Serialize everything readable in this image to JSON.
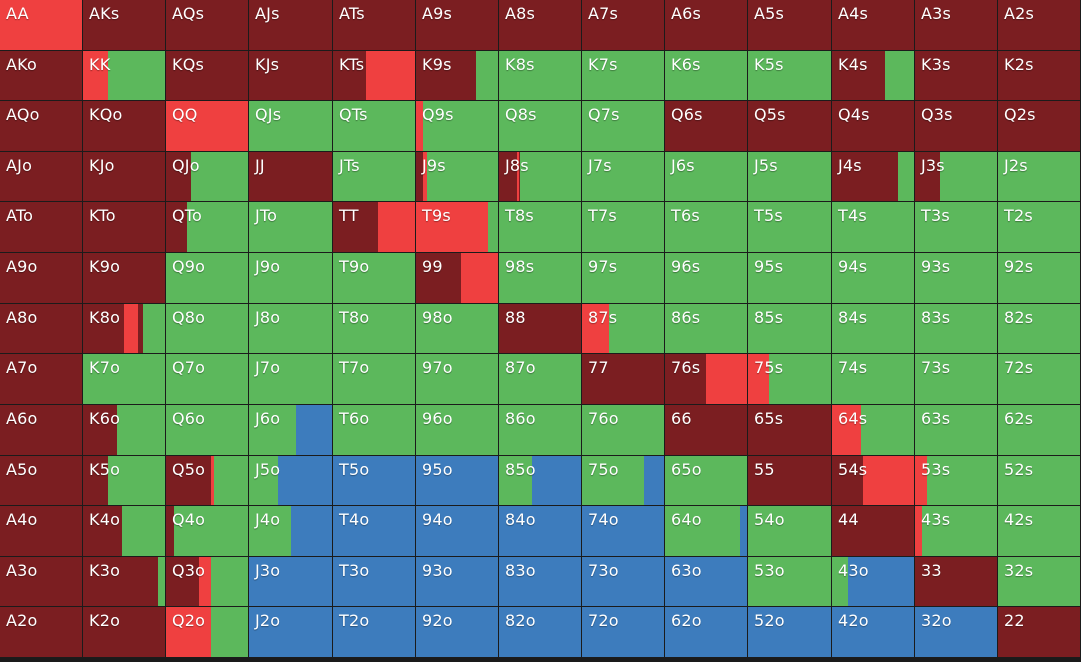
{
  "colors": {
    "fold": "#7b1e21",
    "raise": "#ef4040",
    "call": "#5cb85c",
    "allin": "#3d7cbd"
  },
  "order": [
    "raise",
    "fold",
    "call",
    "allin"
  ],
  "rows": [
    [
      {
        "hand": "AA",
        "mix": {
          "raise": 1.0
        }
      },
      {
        "hand": "AKs",
        "mix": {
          "fold": 1.0
        }
      },
      {
        "hand": "AQs",
        "mix": {
          "fold": 1.0
        }
      },
      {
        "hand": "AJs",
        "mix": {
          "fold": 1.0
        }
      },
      {
        "hand": "ATs",
        "mix": {
          "fold": 1.0
        }
      },
      {
        "hand": "A9s",
        "mix": {
          "fold": 1.0
        }
      },
      {
        "hand": "A8s",
        "mix": {
          "fold": 1.0
        }
      },
      {
        "hand": "A7s",
        "mix": {
          "fold": 1.0
        }
      },
      {
        "hand": "A6s",
        "mix": {
          "fold": 1.0
        }
      },
      {
        "hand": "A5s",
        "mix": {
          "fold": 1.0
        }
      },
      {
        "hand": "A4s",
        "mix": {
          "fold": 1.0
        }
      },
      {
        "hand": "A3s",
        "mix": {
          "fold": 1.0
        }
      },
      {
        "hand": "A2s",
        "mix": {
          "fold": 1.0
        }
      }
    ],
    [
      {
        "hand": "AKo",
        "mix": {
          "fold": 1.0
        }
      },
      {
        "hand": "KK",
        "mix": {
          "raise": 0.31,
          "call": 0.69
        }
      },
      {
        "hand": "KQs",
        "mix": {
          "fold": 1.0
        }
      },
      {
        "hand": "KJs",
        "mix": {
          "fold": 1.0
        }
      },
      {
        "hand": "KTs",
        "mix": {
          "fold": 0.4,
          "raise": 0.6
        }
      },
      {
        "hand": "K9s",
        "mix": {
          "fold": 0.73,
          "call": 0.27
        }
      },
      {
        "hand": "K8s",
        "mix": {
          "call": 1.0
        }
      },
      {
        "hand": "K7s",
        "mix": {
          "call": 1.0
        }
      },
      {
        "hand": "K6s",
        "mix": {
          "call": 1.0
        }
      },
      {
        "hand": "K5s",
        "mix": {
          "call": 1.0
        }
      },
      {
        "hand": "K4s",
        "mix": {
          "fold": 0.65,
          "call": 0.35
        }
      },
      {
        "hand": "K3s",
        "mix": {
          "fold": 1.0
        }
      },
      {
        "hand": "K2s",
        "mix": {
          "fold": 1.0
        }
      }
    ],
    [
      {
        "hand": "AQo",
        "mix": {
          "fold": 1.0
        }
      },
      {
        "hand": "KQo",
        "mix": {
          "fold": 1.0
        }
      },
      {
        "hand": "QQ",
        "mix": {
          "raise": 1.0
        }
      },
      {
        "hand": "QJs",
        "mix": {
          "call": 1.0
        }
      },
      {
        "hand": "QTs",
        "mix": {
          "call": 1.0
        }
      },
      {
        "hand": "Q9s",
        "mix": {
          "raise": 0.08,
          "call": 0.92
        }
      },
      {
        "hand": "Q8s",
        "mix": {
          "call": 1.0
        }
      },
      {
        "hand": "Q7s",
        "mix": {
          "call": 1.0
        }
      },
      {
        "hand": "Q6s",
        "mix": {
          "fold": 1.0
        }
      },
      {
        "hand": "Q5s",
        "mix": {
          "fold": 1.0
        }
      },
      {
        "hand": "Q4s",
        "mix": {
          "fold": 1.0
        }
      },
      {
        "hand": "Q3s",
        "mix": {
          "fold": 1.0
        }
      },
      {
        "hand": "Q2s",
        "mix": {
          "fold": 1.0
        }
      }
    ],
    [
      {
        "hand": "AJo",
        "mix": {
          "fold": 1.0
        }
      },
      {
        "hand": "KJo",
        "mix": {
          "fold": 1.0
        }
      },
      {
        "hand": "QJo",
        "mix": {
          "fold": 0.3,
          "call": 0.7
        }
      },
      {
        "hand": "JJ",
        "mix": {
          "fold": 1.0
        }
      },
      {
        "hand": "JTs",
        "mix": {
          "call": 1.0
        }
      },
      {
        "hand": "J9s",
        "mix": {
          "fold": 0.08,
          "raise": 0.06,
          "call": 0.86
        }
      },
      {
        "hand": "J8s",
        "mix": {
          "fold": 0.22,
          "raise": 0.03,
          "call": 0.75
        }
      },
      {
        "hand": "J7s",
        "mix": {
          "call": 1.0
        }
      },
      {
        "hand": "J6s",
        "mix": {
          "call": 1.0
        }
      },
      {
        "hand": "J5s",
        "mix": {
          "call": 1.0
        }
      },
      {
        "hand": "J4s",
        "mix": {
          "fold": 0.8,
          "call": 0.2
        }
      },
      {
        "hand": "J3s",
        "mix": {
          "fold": 0.3,
          "call": 0.7
        }
      },
      {
        "hand": "J2s",
        "mix": {
          "call": 1.0
        }
      }
    ],
    [
      {
        "hand": "ATo",
        "mix": {
          "fold": 1.0
        }
      },
      {
        "hand": "KTo",
        "mix": {
          "fold": 1.0
        }
      },
      {
        "hand": "QTo",
        "mix": {
          "fold": 0.25,
          "call": 0.75
        }
      },
      {
        "hand": "JTo",
        "mix": {
          "call": 1.0
        }
      },
      {
        "hand": "TT",
        "mix": {
          "fold": 0.55,
          "raise": 0.45
        }
      },
      {
        "hand": "T9s",
        "mix": {
          "raise": 0.88,
          "call": 0.12
        }
      },
      {
        "hand": "T8s",
        "mix": {
          "call": 1.0
        }
      },
      {
        "hand": "T7s",
        "mix": {
          "call": 1.0
        }
      },
      {
        "hand": "T6s",
        "mix": {
          "call": 1.0
        }
      },
      {
        "hand": "T5s",
        "mix": {
          "call": 1.0
        }
      },
      {
        "hand": "T4s",
        "mix": {
          "call": 1.0
        }
      },
      {
        "hand": "T3s",
        "mix": {
          "call": 1.0
        }
      },
      {
        "hand": "T2s",
        "mix": {
          "call": 1.0
        }
      }
    ],
    [
      {
        "hand": "A9o",
        "mix": {
          "fold": 1.0
        }
      },
      {
        "hand": "K9o",
        "mix": {
          "fold": 1.0
        }
      },
      {
        "hand": "Q9o",
        "mix": {
          "call": 1.0
        }
      },
      {
        "hand": "J9o",
        "mix": {
          "call": 1.0
        }
      },
      {
        "hand": "T9o",
        "mix": {
          "call": 1.0
        }
      },
      {
        "hand": "99",
        "mix": {
          "fold": 0.55,
          "raise": 0.45
        }
      },
      {
        "hand": "98s",
        "mix": {
          "call": 1.0
        }
      },
      {
        "hand": "97s",
        "mix": {
          "call": 1.0
        }
      },
      {
        "hand": "96s",
        "mix": {
          "call": 1.0
        }
      },
      {
        "hand": "95s",
        "mix": {
          "call": 1.0
        }
      },
      {
        "hand": "94s",
        "mix": {
          "call": 1.0
        }
      },
      {
        "hand": "93s",
        "mix": {
          "call": 1.0
        }
      },
      {
        "hand": "92s",
        "mix": {
          "call": 1.0
        }
      }
    ],
    [
      {
        "hand": "A8o",
        "mix": {
          "fold": 1.0
        }
      },
      {
        "hand": "K8o",
        "mix": {
          "fold": 0.5,
          "raise": 0.17,
          "fold2": 0.06,
          "call": 0.27
        }
      },
      {
        "hand": "Q8o",
        "mix": {
          "call": 1.0
        }
      },
      {
        "hand": "J8o",
        "mix": {
          "call": 1.0
        }
      },
      {
        "hand": "T8o",
        "mix": {
          "call": 1.0
        }
      },
      {
        "hand": "98o",
        "mix": {
          "call": 1.0
        }
      },
      {
        "hand": "88",
        "mix": {
          "fold": 1.0
        }
      },
      {
        "hand": "87s",
        "mix": {
          "raise": 0.33,
          "call": 0.67
        }
      },
      {
        "hand": "86s",
        "mix": {
          "call": 1.0
        }
      },
      {
        "hand": "85s",
        "mix": {
          "call": 1.0
        }
      },
      {
        "hand": "84s",
        "mix": {
          "call": 1.0
        }
      },
      {
        "hand": "83s",
        "mix": {
          "call": 1.0
        }
      },
      {
        "hand": "82s",
        "mix": {
          "call": 1.0
        }
      }
    ],
    [
      {
        "hand": "A7o",
        "mix": {
          "fold": 1.0
        }
      },
      {
        "hand": "K7o",
        "mix": {
          "call": 1.0
        }
      },
      {
        "hand": "Q7o",
        "mix": {
          "call": 1.0
        }
      },
      {
        "hand": "J7o",
        "mix": {
          "call": 1.0
        }
      },
      {
        "hand": "T7o",
        "mix": {
          "call": 1.0
        }
      },
      {
        "hand": "97o",
        "mix": {
          "call": 1.0
        }
      },
      {
        "hand": "87o",
        "mix": {
          "call": 1.0
        }
      },
      {
        "hand": "77",
        "mix": {
          "fold": 1.0
        }
      },
      {
        "hand": "76s",
        "mix": {
          "fold": 0.5,
          "raise": 0.5
        }
      },
      {
        "hand": "75s",
        "mix": {
          "raise": 0.25,
          "call": 0.75
        }
      },
      {
        "hand": "74s",
        "mix": {
          "call": 1.0
        }
      },
      {
        "hand": "73s",
        "mix": {
          "call": 1.0
        }
      },
      {
        "hand": "72s",
        "mix": {
          "call": 1.0
        }
      }
    ],
    [
      {
        "hand": "A6o",
        "mix": {
          "fold": 1.0
        }
      },
      {
        "hand": "K6o",
        "mix": {
          "fold": 0.42,
          "call": 0.58
        }
      },
      {
        "hand": "Q6o",
        "mix": {
          "call": 1.0
        }
      },
      {
        "hand": "J6o",
        "mix": {
          "call": 0.57,
          "allin": 0.43
        }
      },
      {
        "hand": "T6o",
        "mix": {
          "call": 1.0
        }
      },
      {
        "hand": "96o",
        "mix": {
          "call": 1.0
        }
      },
      {
        "hand": "86o",
        "mix": {
          "call": 1.0
        }
      },
      {
        "hand": "76o",
        "mix": {
          "call": 1.0
        }
      },
      {
        "hand": "66",
        "mix": {
          "fold": 1.0
        }
      },
      {
        "hand": "65s",
        "mix": {
          "fold": 1.0
        }
      },
      {
        "hand": "64s",
        "mix": {
          "raise": 0.35,
          "call": 0.65
        }
      },
      {
        "hand": "63s",
        "mix": {
          "call": 1.0
        }
      },
      {
        "hand": "62s",
        "mix": {
          "call": 1.0
        }
      }
    ],
    [
      {
        "hand": "A5o",
        "mix": {
          "fold": 1.0
        }
      },
      {
        "hand": "K5o",
        "mix": {
          "fold": 0.3,
          "call": 0.7
        }
      },
      {
        "hand": "Q5o",
        "mix": {
          "fold": 0.55,
          "raise": 0.03,
          "fold2": 0.0,
          "call": 0.42
        }
      },
      {
        "hand": "J5o",
        "mix": {
          "call": 0.35,
          "allin": 0.65
        }
      },
      {
        "hand": "T5o",
        "mix": {
          "allin": 1.0
        }
      },
      {
        "hand": "95o",
        "mix": {
          "allin": 1.0
        }
      },
      {
        "hand": "85o",
        "mix": {
          "call": 0.4,
          "allin": 0.6
        }
      },
      {
        "hand": "75o",
        "mix": {
          "call": 0.75,
          "allin": 0.25
        }
      },
      {
        "hand": "65o",
        "mix": {
          "call": 1.0
        }
      },
      {
        "hand": "55",
        "mix": {
          "fold": 1.0
        }
      },
      {
        "hand": "54s",
        "mix": {
          "fold": 0.38,
          "raise": 0.62
        }
      },
      {
        "hand": "53s",
        "mix": {
          "raise": 0.15,
          "call": 0.85
        }
      },
      {
        "hand": "52s",
        "mix": {
          "call": 1.0
        }
      }
    ],
    [
      {
        "hand": "A4o",
        "mix": {
          "fold": 1.0
        }
      },
      {
        "hand": "K4o",
        "mix": {
          "fold": 0.48,
          "call": 0.52
        }
      },
      {
        "hand": "Q4o",
        "mix": {
          "fold": 0.1,
          "call": 0.9
        }
      },
      {
        "hand": "J4o",
        "mix": {
          "call": 0.5,
          "allin": 0.5
        }
      },
      {
        "hand": "T4o",
        "mix": {
          "allin": 1.0
        }
      },
      {
        "hand": "94o",
        "mix": {
          "allin": 1.0
        }
      },
      {
        "hand": "84o",
        "mix": {
          "allin": 1.0
        }
      },
      {
        "hand": "74o",
        "mix": {
          "allin": 1.0
        }
      },
      {
        "hand": "64o",
        "mix": {
          "call": 0.92,
          "allin": 0.08
        }
      },
      {
        "hand": "54o",
        "mix": {
          "call": 1.0
        }
      },
      {
        "hand": "44",
        "mix": {
          "fold": 1.0
        }
      },
      {
        "hand": "43s",
        "mix": {
          "raise": 0.08,
          "call": 0.92
        }
      },
      {
        "hand": "42s",
        "mix": {
          "call": 1.0
        }
      }
    ],
    [
      {
        "hand": "A3o",
        "mix": {
          "fold": 1.0
        }
      },
      {
        "hand": "K3o",
        "mix": {
          "fold": 0.92,
          "call": 0.08
        }
      },
      {
        "hand": "Q3o",
        "mix": {
          "fold": 0.4,
          "raise": 0.15,
          "call": 0.45
        }
      },
      {
        "hand": "J3o",
        "mix": {
          "allin": 1.0
        }
      },
      {
        "hand": "T3o",
        "mix": {
          "allin": 1.0
        }
      },
      {
        "hand": "93o",
        "mix": {
          "allin": 1.0
        }
      },
      {
        "hand": "83o",
        "mix": {
          "allin": 1.0
        }
      },
      {
        "hand": "73o",
        "mix": {
          "allin": 1.0
        }
      },
      {
        "hand": "63o",
        "mix": {
          "allin": 1.0
        }
      },
      {
        "hand": "53o",
        "mix": {
          "call": 1.0
        }
      },
      {
        "hand": "43o",
        "mix": {
          "call": 0.2,
          "allin": 0.8
        }
      },
      {
        "hand": "33",
        "mix": {
          "fold": 1.0
        }
      },
      {
        "hand": "32s",
        "mix": {
          "call": 1.0
        }
      }
    ],
    [
      {
        "hand": "A2o",
        "mix": {
          "fold": 1.0
        }
      },
      {
        "hand": "K2o",
        "mix": {
          "fold": 1.0
        }
      },
      {
        "hand": "Q2o",
        "mix": {
          "raise": 0.55,
          "call": 0.45
        }
      },
      {
        "hand": "J2o",
        "mix": {
          "allin": 1.0
        }
      },
      {
        "hand": "T2o",
        "mix": {
          "allin": 1.0
        }
      },
      {
        "hand": "92o",
        "mix": {
          "allin": 1.0
        }
      },
      {
        "hand": "82o",
        "mix": {
          "allin": 1.0
        }
      },
      {
        "hand": "72o",
        "mix": {
          "allin": 1.0
        }
      },
      {
        "hand": "62o",
        "mix": {
          "allin": 1.0
        }
      },
      {
        "hand": "52o",
        "mix": {
          "allin": 1.0
        }
      },
      {
        "hand": "42o",
        "mix": {
          "allin": 1.0
        }
      },
      {
        "hand": "32o",
        "mix": {
          "allin": 1.0
        }
      },
      {
        "hand": "22",
        "mix": {
          "fold": 1.0
        }
      }
    ]
  ]
}
